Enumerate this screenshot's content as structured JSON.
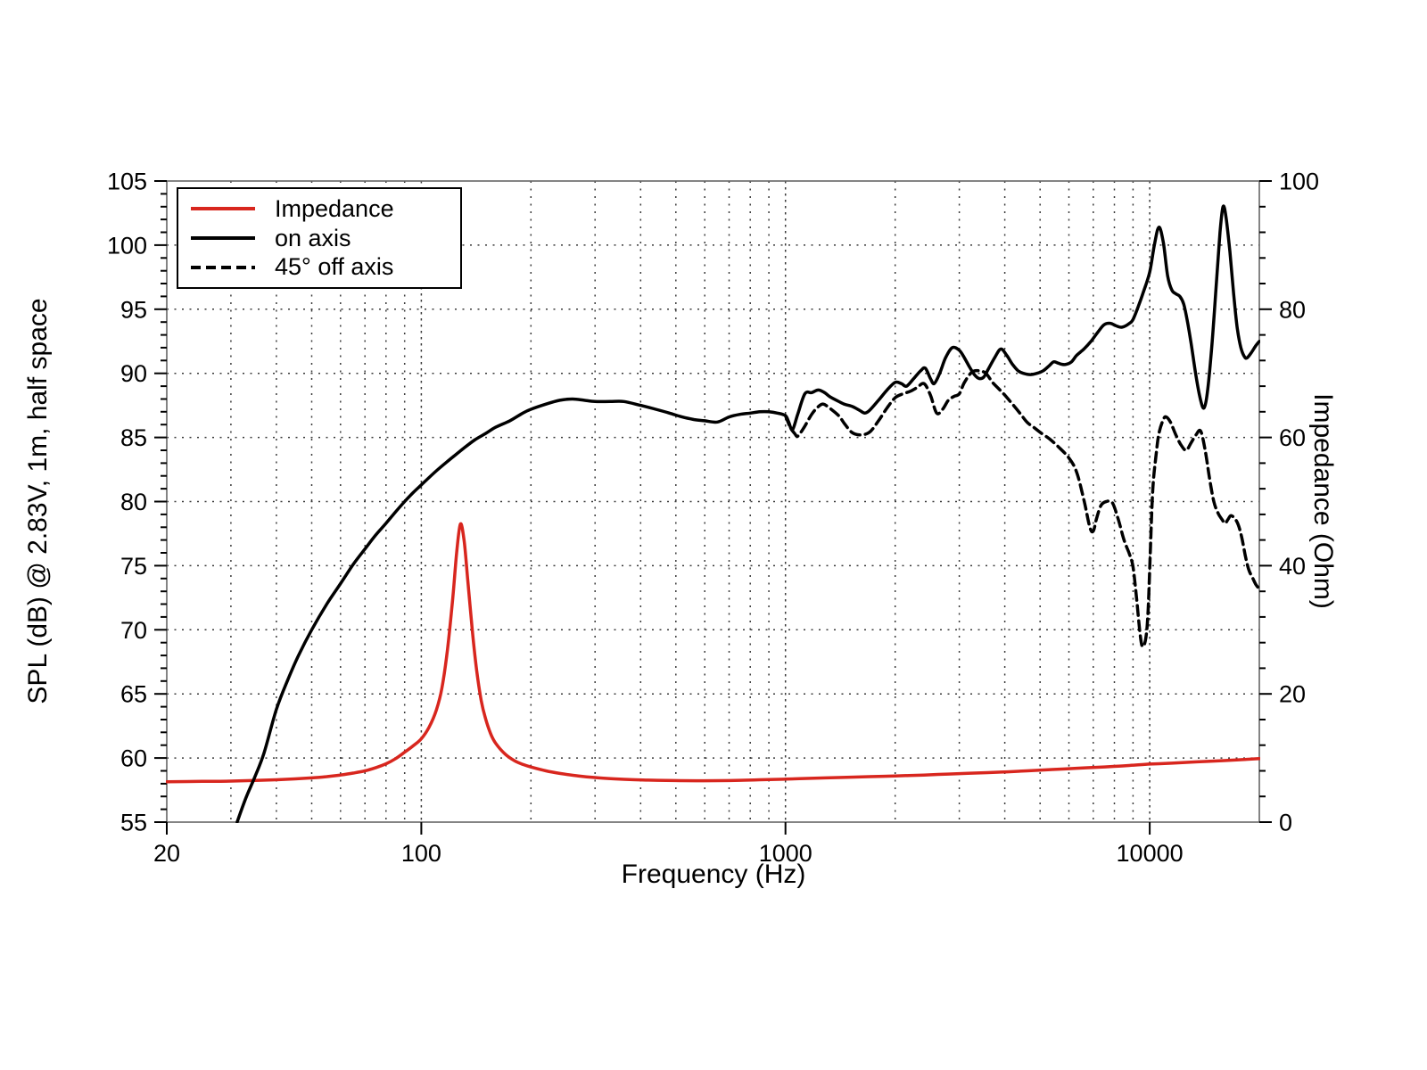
{
  "figure": {
    "background": "#ffffff",
    "frame_color": "#666666",
    "grid_color": "#3a3a3a",
    "text_color": "#000000"
  },
  "chart_data": {
    "type": "line",
    "title": "",
    "x_axis": {
      "label": "Frequency (Hz)",
      "scale": "log",
      "range": [
        20,
        20000
      ],
      "major_ticks": [
        20,
        100,
        1000,
        10000
      ],
      "tick_labels": [
        "20",
        "100",
        "1000",
        "10000"
      ],
      "major_gridlines": [
        100,
        1000,
        10000
      ],
      "minor_gridlines": [
        30,
        40,
        50,
        60,
        70,
        80,
        90,
        200,
        300,
        400,
        500,
        600,
        700,
        800,
        900,
        2000,
        3000,
        4000,
        5000,
        6000,
        7000,
        8000,
        9000
      ]
    },
    "y_axis_left": {
      "label": "SPL (dB) @ 2.83V, 1m, half space",
      "range": [
        55,
        105
      ],
      "major_ticks": [
        55,
        60,
        65,
        70,
        75,
        80,
        85,
        90,
        95,
        100,
        105
      ],
      "minor_tick_step": 1,
      "gridlines": [
        60,
        65,
        70,
        75,
        80,
        85,
        90,
        95,
        100
      ]
    },
    "y_axis_right": {
      "label": "Impedance (Ohm)",
      "range": [
        0,
        100
      ],
      "major_ticks": [
        0,
        20,
        40,
        60,
        80,
        100
      ],
      "minor_tick_step": 4
    },
    "legend_position": "upper-left",
    "series": [
      {
        "name": "Impedance",
        "axis": "right",
        "unit": "Ohm",
        "color": "#d8261e",
        "style": "solid",
        "points": [
          [
            20,
            6.3
          ],
          [
            25,
            6.35
          ],
          [
            30,
            6.4
          ],
          [
            35,
            6.5
          ],
          [
            40,
            6.6
          ],
          [
            45,
            6.75
          ],
          [
            50,
            6.9
          ],
          [
            55,
            7.1
          ],
          [
            60,
            7.35
          ],
          [
            65,
            7.65
          ],
          [
            70,
            8.0
          ],
          [
            75,
            8.5
          ],
          [
            80,
            9.1
          ],
          [
            85,
            9.9
          ],
          [
            90,
            10.9
          ],
          [
            95,
            11.9
          ],
          [
            100,
            13.0
          ],
          [
            105,
            14.8
          ],
          [
            110,
            17.5
          ],
          [
            114,
            21.0
          ],
          [
            118,
            27.0
          ],
          [
            122,
            35.0
          ],
          [
            125,
            42.0
          ],
          [
            128,
            46.5
          ],
          [
            131,
            44.0
          ],
          [
            134,
            38.0
          ],
          [
            138,
            30.0
          ],
          [
            142,
            23.5
          ],
          [
            146,
            19.0
          ],
          [
            150,
            16.2
          ],
          [
            155,
            13.8
          ],
          [
            160,
            12.3
          ],
          [
            170,
            10.6
          ],
          [
            180,
            9.6
          ],
          [
            190,
            9.0
          ],
          [
            200,
            8.6
          ],
          [
            220,
            8.0
          ],
          [
            240,
            7.6
          ],
          [
            270,
            7.2
          ],
          [
            300,
            6.95
          ],
          [
            340,
            6.75
          ],
          [
            380,
            6.62
          ],
          [
            420,
            6.55
          ],
          [
            470,
            6.5
          ],
          [
            520,
            6.47
          ],
          [
            580,
            6.45
          ],
          [
            650,
            6.47
          ],
          [
            750,
            6.52
          ],
          [
            850,
            6.6
          ],
          [
            1000,
            6.7
          ],
          [
            1200,
            6.85
          ],
          [
            1400,
            6.95
          ],
          [
            1700,
            7.1
          ],
          [
            2000,
            7.2
          ],
          [
            2400,
            7.35
          ],
          [
            2800,
            7.5
          ],
          [
            3300,
            7.65
          ],
          [
            3900,
            7.8
          ],
          [
            4600,
            8.0
          ],
          [
            5400,
            8.2
          ],
          [
            6300,
            8.4
          ],
          [
            7400,
            8.6
          ],
          [
            8600,
            8.8
          ],
          [
            10000,
            9.05
          ],
          [
            11500,
            9.2
          ],
          [
            13500,
            9.4
          ],
          [
            16000,
            9.6
          ],
          [
            18000,
            9.75
          ],
          [
            20000,
            9.9
          ]
        ]
      },
      {
        "name": "on axis",
        "axis": "left",
        "unit": "dB",
        "color": "#000000",
        "style": "solid",
        "points": [
          [
            31.2,
            55.0
          ],
          [
            33,
            56.9
          ],
          [
            35,
            58.6
          ],
          [
            37,
            60.4
          ],
          [
            40,
            63.8
          ],
          [
            43,
            66.1
          ],
          [
            46,
            68.0
          ],
          [
            50,
            70.0
          ],
          [
            55,
            72.0
          ],
          [
            60,
            73.6
          ],
          [
            65,
            75.1
          ],
          [
            70,
            76.3
          ],
          [
            75,
            77.4
          ],
          [
            80,
            78.3
          ],
          [
            85,
            79.2
          ],
          [
            90,
            80.0
          ],
          [
            95,
            80.7
          ],
          [
            100,
            81.3
          ],
          [
            110,
            82.4
          ],
          [
            120,
            83.3
          ],
          [
            130,
            84.1
          ],
          [
            140,
            84.8
          ],
          [
            150,
            85.3
          ],
          [
            160,
            85.8
          ],
          [
            175,
            86.3
          ],
          [
            190,
            86.9
          ],
          [
            200,
            87.2
          ],
          [
            220,
            87.6
          ],
          [
            240,
            87.9
          ],
          [
            260,
            88.0
          ],
          [
            280,
            87.9
          ],
          [
            300,
            87.8
          ],
          [
            330,
            87.8
          ],
          [
            360,
            87.8
          ],
          [
            400,
            87.5
          ],
          [
            440,
            87.2
          ],
          [
            480,
            86.9
          ],
          [
            520,
            86.6
          ],
          [
            560,
            86.4
          ],
          [
            600,
            86.3
          ],
          [
            650,
            86.2
          ],
          [
            700,
            86.6
          ],
          [
            750,
            86.8
          ],
          [
            800,
            86.9
          ],
          [
            850,
            87.0
          ],
          [
            900,
            87.0
          ],
          [
            950,
            86.9
          ],
          [
            1000,
            86.7
          ],
          [
            1020,
            86.2
          ],
          [
            1045,
            85.6
          ],
          [
            1080,
            86.8
          ],
          [
            1130,
            88.4
          ],
          [
            1180,
            88.5
          ],
          [
            1230,
            88.7
          ],
          [
            1280,
            88.5
          ],
          [
            1320,
            88.2
          ],
          [
            1380,
            87.9
          ],
          [
            1450,
            87.6
          ],
          [
            1530,
            87.4
          ],
          [
            1600,
            87.1
          ],
          [
            1650,
            86.9
          ],
          [
            1700,
            87.1
          ],
          [
            1800,
            87.9
          ],
          [
            1900,
            88.7
          ],
          [
            2000,
            89.3
          ],
          [
            2080,
            89.2
          ],
          [
            2150,
            89.0
          ],
          [
            2250,
            89.6
          ],
          [
            2350,
            90.2
          ],
          [
            2420,
            90.4
          ],
          [
            2500,
            89.6
          ],
          [
            2560,
            89.2
          ],
          [
            2650,
            90.0
          ],
          [
            2750,
            91.2
          ],
          [
            2870,
            92.0
          ],
          [
            3000,
            91.8
          ],
          [
            3100,
            91.2
          ],
          [
            3200,
            90.5
          ],
          [
            3300,
            89.9
          ],
          [
            3400,
            89.6
          ],
          [
            3500,
            89.7
          ],
          [
            3600,
            90.3
          ],
          [
            3750,
            91.2
          ],
          [
            3900,
            91.9
          ],
          [
            4050,
            91.4
          ],
          [
            4200,
            90.7
          ],
          [
            4350,
            90.2
          ],
          [
            4500,
            90.0
          ],
          [
            4700,
            89.9
          ],
          [
            4900,
            90.0
          ],
          [
            5100,
            90.2
          ],
          [
            5300,
            90.6
          ],
          [
            5450,
            90.9
          ],
          [
            5600,
            90.8
          ],
          [
            5750,
            90.7
          ],
          [
            5900,
            90.7
          ],
          [
            6100,
            90.9
          ],
          [
            6300,
            91.4
          ],
          [
            6600,
            91.9
          ],
          [
            6900,
            92.5
          ],
          [
            7200,
            93.2
          ],
          [
            7500,
            93.8
          ],
          [
            7800,
            93.9
          ],
          [
            8100,
            93.7
          ],
          [
            8400,
            93.6
          ],
          [
            8800,
            93.9
          ],
          [
            9000,
            94.2
          ],
          [
            9300,
            95.2
          ],
          [
            9600,
            96.3
          ],
          [
            10000,
            97.9
          ],
          [
            10300,
            100.0
          ],
          [
            10600,
            101.4
          ],
          [
            10900,
            100.2
          ],
          [
            11200,
            97.6
          ],
          [
            11500,
            96.5
          ],
          [
            11800,
            96.2
          ],
          [
            12100,
            96.0
          ],
          [
            12400,
            95.4
          ],
          [
            12700,
            94.0
          ],
          [
            13000,
            92.3
          ],
          [
            13400,
            89.8
          ],
          [
            13800,
            87.9
          ],
          [
            14100,
            87.3
          ],
          [
            14400,
            88.5
          ],
          [
            14800,
            92.0
          ],
          [
            15200,
            96.5
          ],
          [
            15600,
            101.0
          ],
          [
            15900,
            103.0
          ],
          [
            16200,
            102.2
          ],
          [
            16600,
            99.5
          ],
          [
            17000,
            96.2
          ],
          [
            17400,
            93.5
          ],
          [
            17800,
            92.0
          ],
          [
            18200,
            91.3
          ],
          [
            18500,
            91.2
          ],
          [
            19000,
            91.6
          ],
          [
            19500,
            92.1
          ],
          [
            20000,
            92.5
          ]
        ]
      },
      {
        "name": "45° off axis",
        "axis": "left",
        "unit": "dB",
        "color": "#000000",
        "style": "dashed",
        "points": [
          [
            1000,
            86.7
          ],
          [
            1030,
            85.8
          ],
          [
            1060,
            85.3
          ],
          [
            1080,
            85.1
          ],
          [
            1120,
            85.7
          ],
          [
            1180,
            86.8
          ],
          [
            1230,
            87.4
          ],
          [
            1270,
            87.6
          ],
          [
            1320,
            87.3
          ],
          [
            1400,
            86.7
          ],
          [
            1450,
            86.1
          ],
          [
            1520,
            85.4
          ],
          [
            1600,
            85.2
          ],
          [
            1700,
            85.4
          ],
          [
            1800,
            86.3
          ],
          [
            1900,
            87.3
          ],
          [
            2000,
            88.1
          ],
          [
            2100,
            88.4
          ],
          [
            2200,
            88.6
          ],
          [
            2300,
            88.9
          ],
          [
            2400,
            89.2
          ],
          [
            2500,
            88.3
          ],
          [
            2600,
            86.9
          ],
          [
            2700,
            87.2
          ],
          [
            2800,
            87.9
          ],
          [
            2900,
            88.2
          ],
          [
            3000,
            88.4
          ],
          [
            3100,
            89.3
          ],
          [
            3250,
            90.1
          ],
          [
            3400,
            90.2
          ],
          [
            3550,
            90.0
          ],
          [
            3700,
            89.3
          ],
          [
            3850,
            88.8
          ],
          [
            4000,
            88.3
          ],
          [
            4200,
            87.6
          ],
          [
            4400,
            86.9
          ],
          [
            4600,
            86.2
          ],
          [
            4800,
            85.8
          ],
          [
            5000,
            85.4
          ],
          [
            5300,
            84.9
          ],
          [
            5600,
            84.3
          ],
          [
            6000,
            83.4
          ],
          [
            6300,
            82.3
          ],
          [
            6600,
            80.1
          ],
          [
            6850,
            78.0
          ],
          [
            7000,
            77.7
          ],
          [
            7150,
            78.7
          ],
          [
            7350,
            79.7
          ],
          [
            7600,
            80.0
          ],
          [
            7900,
            79.9
          ],
          [
            8200,
            78.6
          ],
          [
            8500,
            77.0
          ],
          [
            8800,
            75.9
          ],
          [
            9000,
            74.9
          ],
          [
            9200,
            72.5
          ],
          [
            9400,
            69.8
          ],
          [
            9550,
            68.7
          ],
          [
            9750,
            69.3
          ],
          [
            9900,
            71.5
          ],
          [
            10050,
            76.5
          ],
          [
            10200,
            81.0
          ],
          [
            10400,
            83.5
          ],
          [
            10600,
            85.3
          ],
          [
            10900,
            86.4
          ],
          [
            11100,
            86.6
          ],
          [
            11400,
            86.2
          ],
          [
            11800,
            85.2
          ],
          [
            12200,
            84.4
          ],
          [
            12600,
            84.0
          ],
          [
            13000,
            84.6
          ],
          [
            13400,
            85.2
          ],
          [
            13800,
            85.5
          ],
          [
            14200,
            84.0
          ],
          [
            14600,
            81.8
          ],
          [
            15000,
            80.0
          ],
          [
            15400,
            79.1
          ],
          [
            15800,
            78.6
          ],
          [
            16100,
            78.3
          ],
          [
            16400,
            78.6
          ],
          [
            16700,
            78.9
          ],
          [
            17100,
            78.7
          ],
          [
            17500,
            78.2
          ],
          [
            17900,
            77.2
          ],
          [
            18300,
            75.8
          ],
          [
            18700,
            74.7
          ],
          [
            19200,
            74.0
          ],
          [
            19600,
            73.5
          ],
          [
            20000,
            73.2
          ]
        ]
      }
    ]
  }
}
